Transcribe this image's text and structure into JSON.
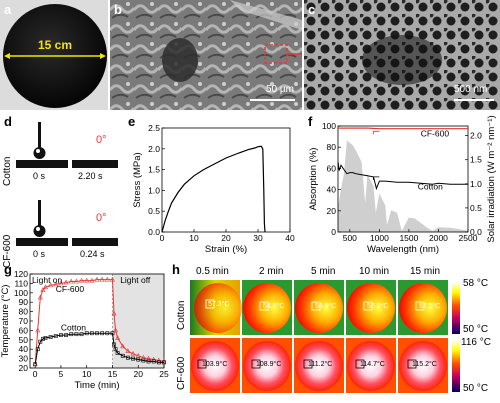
{
  "panels": {
    "a": {
      "label": "a",
      "scale_text": "15 cm"
    },
    "b": {
      "label": "b",
      "scale_text": "50 µm"
    },
    "c": {
      "label": "c",
      "scale_text": "500 nm"
    },
    "d": {
      "label": "d",
      "rows": [
        {
          "name": "Cotton",
          "angle": "0°",
          "t0": "0 s",
          "t1": "2.20 s"
        },
        {
          "name": "CF-600",
          "angle": "0°",
          "t0": "0 s",
          "t1": "0.24 s"
        }
      ]
    },
    "e": {
      "label": "e"
    },
    "f": {
      "label": "f"
    },
    "g": {
      "label": "g",
      "light_on": "Light on",
      "light_off": "Light off"
    },
    "h": {
      "label": "h",
      "times": [
        "0.5 min",
        "2 min",
        "5 min",
        "10 min",
        "15 min"
      ],
      "rows": [
        {
          "name": "Cotton",
          "temps": [
            "57.3°C",
            "54.6°C",
            "56.9°C",
            "57.2°C",
            "57.5°C"
          ],
          "scale_max": "58 °C",
          "scale_min": "50 °C"
        },
        {
          "name": "CF-600",
          "temps": [
            "103.9°C",
            "108.9°C",
            "111.2°C",
            "114.7°C",
            "115.2°C"
          ],
          "scale_max": "116 °C",
          "scale_min": "50 °C"
        }
      ]
    }
  },
  "chart_data": [
    {
      "id": "e",
      "type": "line",
      "xlabel": "Strain (%)",
      "ylabel": "Stress (MPa)",
      "xlim": [
        0,
        40
      ],
      "ylim": [
        0,
        2.5
      ],
      "xticks": [
        0,
        10,
        20,
        30,
        40
      ],
      "yticks": [
        0.0,
        0.5,
        1.0,
        1.5,
        2.0,
        2.5
      ],
      "series": [
        {
          "x": [
            0,
            1,
            2,
            3,
            5,
            7,
            10,
            13,
            16,
            20,
            24,
            27,
            29,
            30,
            31,
            31.5,
            31.8,
            32,
            32.2
          ],
          "values": [
            0,
            0.28,
            0.5,
            0.7,
            0.95,
            1.15,
            1.35,
            1.5,
            1.62,
            1.78,
            1.9,
            1.98,
            2.02,
            2.05,
            2.06,
            2.0,
            1.0,
            0.2,
            0
          ]
        }
      ]
    },
    {
      "id": "f",
      "type": "line",
      "xlabel": "Wavelength (nm)",
      "ylabel": "Absorption (%)",
      "y2label": "Solar irradiation (W m⁻² nm⁻¹)",
      "xlim": [
        300,
        2500
      ],
      "ylim": [
        0,
        100
      ],
      "y2lim": [
        0,
        2.2
      ],
      "xticks": [
        500,
        1000,
        1500,
        2000,
        2500
      ],
      "yticks": [
        0,
        20,
        40,
        60,
        80,
        100
      ],
      "y2ticks": [
        0.0,
        0.5,
        1.0,
        1.5,
        2.0
      ],
      "series": [
        {
          "name": "CF-600",
          "color": "#e53935",
          "x": [
            300,
            500,
            800,
            1000,
            1500,
            2000,
            2500
          ],
          "values": [
            98,
            98,
            98,
            97.5,
            97.5,
            97.5,
            97.5
          ]
        },
        {
          "name": "Cotton",
          "color": "#000000",
          "x": [
            300,
            320,
            350,
            400,
            450,
            500,
            550,
            600,
            700,
            800,
            900,
            950,
            1000,
            1100,
            1300,
            1500,
            1700,
            1900,
            2000,
            2200,
            2500
          ],
          "values": [
            66,
            58,
            63,
            59,
            55,
            56,
            56,
            55,
            54,
            53,
            52,
            41,
            48,
            48,
            47,
            47,
            46,
            45,
            46,
            45,
            45
          ]
        },
        {
          "name": "Solar irradiation",
          "color": "#cfcfcf",
          "x": [
            300,
            350,
            400,
            450,
            500,
            550,
            600,
            700,
            760,
            800,
            900,
            940,
            1000,
            1100,
            1130,
            1200,
            1300,
            1380,
            1500,
            1600,
            1800,
            1900,
            2000,
            2200,
            2500
          ],
          "values": [
            0.5,
            0.9,
            1.2,
            1.9,
            1.85,
            1.8,
            1.7,
            1.45,
            0.6,
            1.2,
            0.95,
            0.4,
            0.8,
            0.55,
            0.15,
            0.45,
            0.4,
            0.02,
            0.3,
            0.28,
            0.1,
            0.02,
            0.1,
            0.09,
            0.03
          ]
        }
      ]
    },
    {
      "id": "g",
      "type": "scatter",
      "xlabel": "Time (min)",
      "ylabel": "Temperature (°C)",
      "xlim": [
        -1,
        25
      ],
      "ylim": [
        20,
        120
      ],
      "xticks": [
        0,
        5,
        10,
        15,
        20,
        25
      ],
      "yticks": [
        20,
        30,
        40,
        50,
        60,
        70,
        80,
        90,
        100,
        110,
        120
      ],
      "series": [
        {
          "name": "CF-600",
          "color": "#e53935",
          "x": [
            0,
            0.5,
            1,
            1.5,
            2,
            3,
            4,
            5,
            6,
            7,
            8,
            9,
            10,
            11,
            12,
            13,
            14,
            15,
            15.3,
            15.6,
            16,
            17,
            18,
            19,
            20,
            21,
            22,
            23,
            24,
            25
          ],
          "values": [
            24,
            60,
            95,
            103,
            106,
            108,
            109,
            110,
            111,
            112,
            112,
            113,
            113,
            113,
            114,
            114,
            114,
            114,
            78,
            60,
            52,
            43,
            38,
            35,
            33,
            31,
            30,
            29,
            28,
            27
          ]
        },
        {
          "name": "Cotton",
          "color": "#000000",
          "x": [
            0,
            0.5,
            1,
            1.5,
            2,
            3,
            4,
            5,
            6,
            7,
            8,
            9,
            10,
            11,
            12,
            13,
            14,
            15,
            15.3,
            15.6,
            16,
            17,
            18,
            19,
            20,
            21,
            22,
            23,
            24,
            25
          ],
          "values": [
            24,
            40,
            48,
            51,
            52,
            53,
            54,
            55,
            55,
            56,
            56,
            56,
            57,
            57,
            57,
            57,
            57,
            57,
            45,
            40,
            36,
            33,
            31,
            30,
            29,
            28,
            27,
            27,
            26,
            26
          ]
        }
      ]
    }
  ]
}
